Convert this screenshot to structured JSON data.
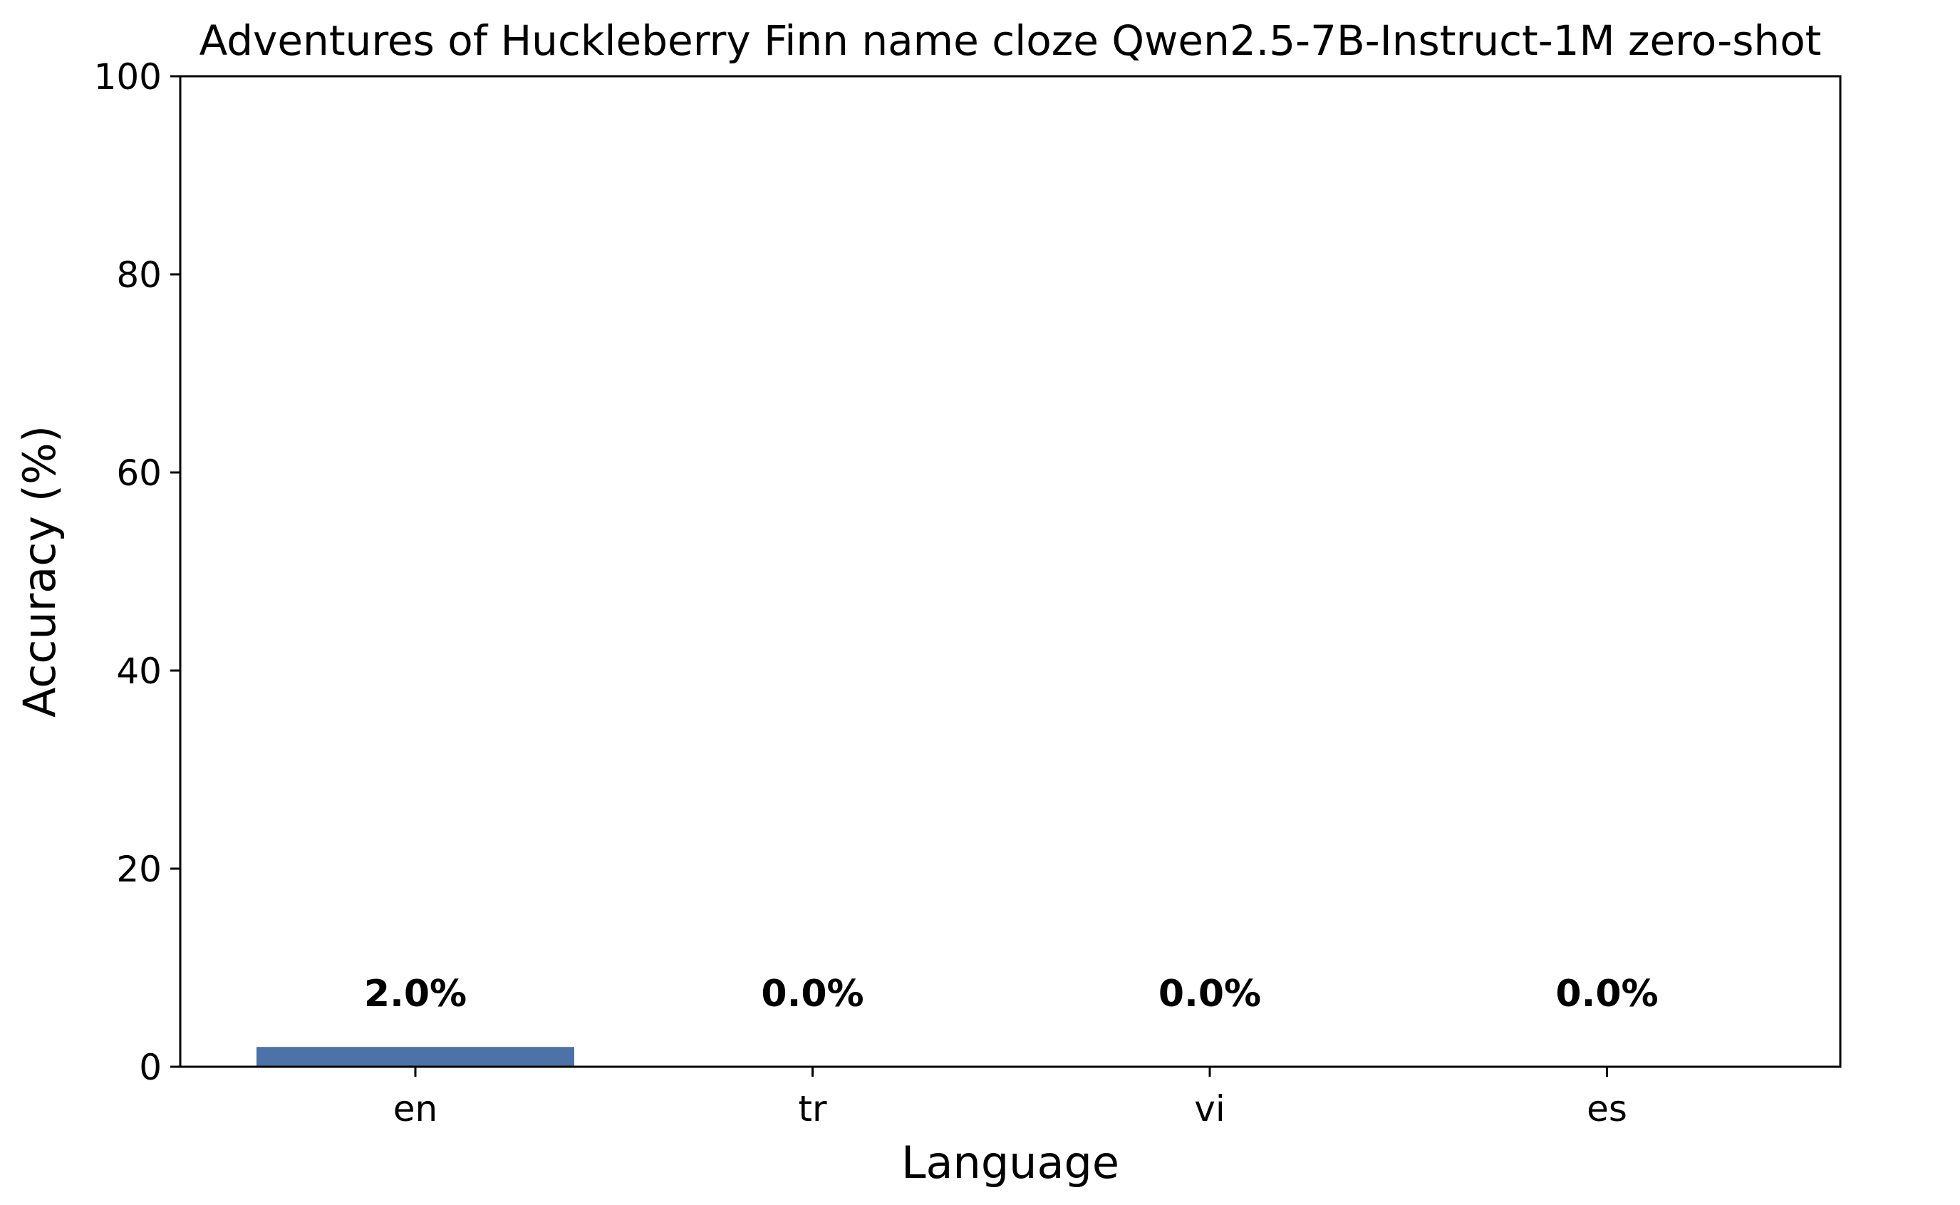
{
  "chart_data": {
    "type": "bar",
    "title": "Adventures of Huckleberry Finn name cloze Qwen2.5-7B-Instruct-1M zero-shot",
    "xlabel": "Language",
    "ylabel": "Accuracy (%)",
    "categories": [
      "en",
      "tr",
      "vi",
      "es"
    ],
    "values": [
      2.0,
      0.0,
      0.0,
      0.0
    ],
    "data_labels": [
      "2.0%",
      "0.0%",
      "0.0%",
      "0.0%"
    ],
    "ylim": [
      0,
      100
    ],
    "yticks": [
      0,
      20,
      40,
      60,
      80,
      100
    ],
    "ytick_labels": [
      "0",
      "20",
      "40",
      "60",
      "80",
      "100"
    ],
    "bar_color": "#4c72a8",
    "grid": false,
    "legend": "none"
  }
}
